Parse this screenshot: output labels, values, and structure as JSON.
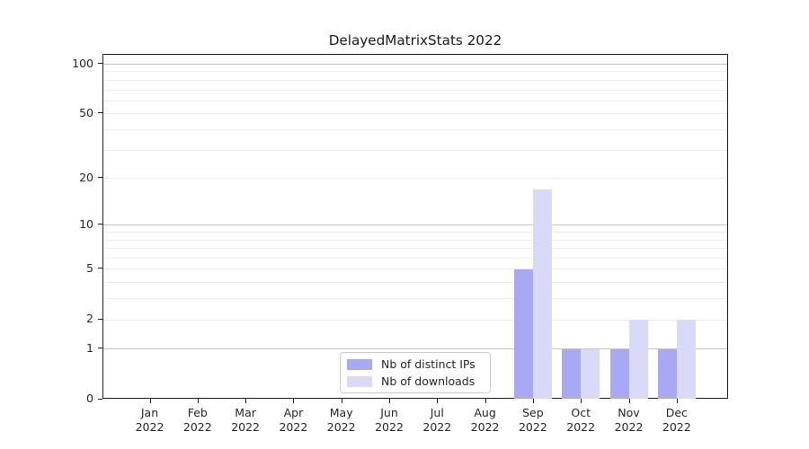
{
  "chart_data": {
    "type": "bar",
    "title": "DelayedMatrixStats 2022",
    "categories": [
      "Jan",
      "Feb",
      "Mar",
      "Apr",
      "May",
      "Jun",
      "Jul",
      "Aug",
      "Sep",
      "Oct",
      "Nov",
      "Dec"
    ],
    "year_label": "2022",
    "series": [
      {
        "name": "Nb of distinct IPs",
        "color": "#a8a8f5",
        "values": [
          0,
          0,
          0,
          0,
          0,
          0,
          0,
          0,
          5,
          1,
          1,
          1
        ]
      },
      {
        "name": "Nb of downloads",
        "color": "#d9d9f8",
        "values": [
          0,
          0,
          0,
          0,
          0,
          0,
          0,
          0,
          17,
          1,
          2,
          2
        ]
      }
    ],
    "xlabel": "",
    "ylabel": "",
    "yscale": "log1p",
    "ylim": [
      0,
      114
    ],
    "yticks": [
      0,
      1,
      2,
      5,
      10,
      20,
      50,
      100
    ],
    "ymajor_gridlines": [
      1,
      10,
      100
    ],
    "yminor_gridlines": [
      2,
      3,
      4,
      5,
      6,
      7,
      8,
      9,
      20,
      30,
      40,
      50,
      60,
      70,
      80,
      90
    ],
    "grid": "horizontal",
    "legend_position": "lower center"
  },
  "style": {
    "background": "#ffffff",
    "spine_color": "#1f1f1f",
    "major_grid_color": "#c4c4c4",
    "minor_grid_color": "#ededed",
    "text_color": "#262626"
  }
}
